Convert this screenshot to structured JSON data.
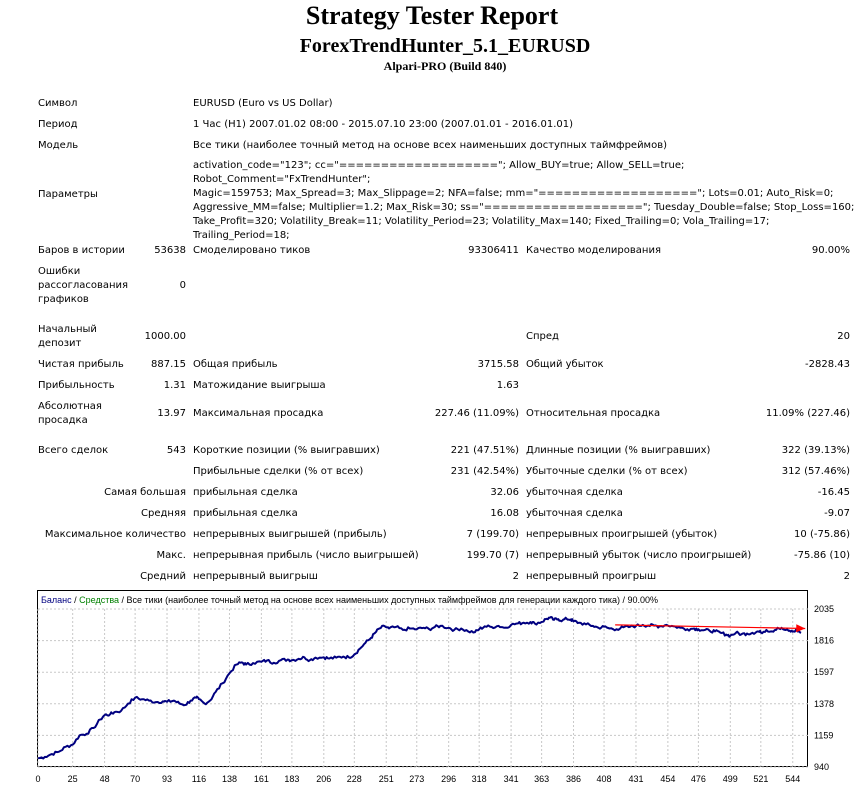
{
  "header": {
    "title": "Strategy Tester Report",
    "ea_name": "ForexTrendHunter_5.1_EURUSD",
    "broker": "Alpari-PRO (Build 840)"
  },
  "info": {
    "symbol_label": "Символ",
    "symbol_value": "EURUSD (Euro vs US Dollar)",
    "period_label": "Период",
    "period_value": "1 Час (H1) 2007.01.02 08:00 - 2015.07.10 23:00 (2007.01.01 - 2016.01.01)",
    "model_label": "Модель",
    "model_value": "Все тики (наиболее точный метод на основе всех наименьших доступных таймфреймов)",
    "params_label": "Параметры",
    "params_lines": [
      "activation_code=\"123\"; cc=\"===================\"; Allow_BUY=true; Allow_SELL=true; Robot_Comment=\"FxTrendHunter\";",
      "Magic=159753; Max_Spread=3; Max_Slippage=2; NFA=false; mm=\"===================\"; Lots=0.01; Auto_Risk=0;",
      "Aggressive_MM=false; Multiplier=1.2; Max_Risk=30; ss=\"===================\"; Tuesday_Double=false; Stop_Loss=160;",
      "Take_Profit=320; Volatility_Break=11; Volatility_Period=23; Volatility_Max=140; Fixed_Trailing=0; Vola_Trailing=17;",
      "Trailing_Period=18;"
    ]
  },
  "stats": {
    "bars_label": "Баров в истории",
    "bars_value": "53638",
    "ticks_label": "Смоделировано тиков",
    "ticks_value": "93306411",
    "quality_label": "Качество моделирования",
    "quality_value": "90.00%",
    "errors_label_1": "Ошибки",
    "errors_label_2": "рассогласования",
    "errors_label_3": "графиков",
    "errors_value": "0",
    "deposit_label_1": "Начальный",
    "deposit_label_2": "депозит",
    "deposit_value": "1000.00",
    "spread_label": "Спред",
    "spread_value": "20",
    "net_label": "Чистая прибыль",
    "net_value": "887.15",
    "gross_profit_label": "Общая прибыль",
    "gross_profit_value": "3715.58",
    "gross_loss_label": "Общий убыток",
    "gross_loss_value": "-2828.43",
    "pf_label": "Прибыльность",
    "pf_value": "1.31",
    "expected_label": "Матожидание выигрыша",
    "expected_value": "1.63",
    "abs_dd_label_1": "Абсолютная",
    "abs_dd_label_2": "просадка",
    "abs_dd_value": "13.97",
    "max_dd_label": "Максимальная просадка",
    "max_dd_value": "227.46 (11.09%)",
    "rel_dd_label": "Относительная просадка",
    "rel_dd_value": "11.09% (227.46)",
    "trades_label": "Всего сделок",
    "trades_value": "543",
    "short_label": "Короткие позиции (% выигравших)",
    "short_value": "221 (47.51%)",
    "long_label": "Длинные позиции (% выигравших)",
    "long_value": "322 (39.13%)",
    "profit_trades_label": "Прибыльные сделки (% от всех)",
    "profit_trades_value": "231 (42.54%)",
    "loss_trades_label": "Убыточные сделки (% от всех)",
    "loss_trades_value": "312 (57.46%)",
    "largest_label": "Самая большая",
    "largest_profit_label": "прибыльная сделка",
    "largest_profit_value": "32.06",
    "largest_loss_label": "убыточная сделка",
    "largest_loss_value": "-16.45",
    "average_label": "Средняя",
    "avg_profit_label": "прибыльная сделка",
    "avg_profit_value": "16.08",
    "avg_loss_label": "убыточная сделка",
    "avg_loss_value": "-9.07",
    "max_count_label": "Максимальное количество",
    "max_cons_wins_label": "непрерывных выигрышей (прибыль)",
    "max_cons_wins_value": "7 (199.70)",
    "max_cons_losses_label": "непрерывных проигрышей (убыток)",
    "max_cons_losses_value": "10 (-75.86)",
    "max_label": "Макс.",
    "max_cons_profit_label": "непрерывная прибыль (число выигрышей)",
    "max_cons_profit_value": "199.70 (7)",
    "max_cons_loss_label": "непрерывный убыток (число проигрышей)",
    "max_cons_loss_value": "-75.86 (10)",
    "avg_cons_label": "Средний",
    "avg_cons_wins_label": "непрерывный выигрыш",
    "avg_cons_wins_value": "2",
    "avg_cons_losses_label": "непрерывный проигрыш",
    "avg_cons_losses_value": "2"
  },
  "chart_data": {
    "type": "line",
    "legend_balance": "Баланс",
    "legend_sep": " / ",
    "legend_funds": "Средства",
    "legend_rest": " / Все тики (наиболее точный метод на основе всех наименьших доступных таймфреймов для генерации каждого тика) / 90.00%",
    "xlim": [
      0,
      555
    ],
    "ylim": [
      940,
      2035
    ],
    "x_ticks": [
      "0",
      "25",
      "48",
      "70",
      "93",
      "116",
      "138",
      "161",
      "183",
      "206",
      "228",
      "251",
      "273",
      "296",
      "318",
      "341",
      "363",
      "386",
      "408",
      "431",
      "454",
      "476",
      "499",
      "521",
      "544"
    ],
    "y_ticks": [
      "2035",
      "1816",
      "1597",
      "1378",
      "1159",
      "940"
    ],
    "colors": {
      "balance": "#000080",
      "funds": "#008000",
      "arrow": "#ff0000",
      "grid": "#c8c8c8"
    },
    "balance": [
      [
        0,
        1000
      ],
      [
        5,
        1010
      ],
      [
        10,
        1030
      ],
      [
        15,
        1045
      ],
      [
        20,
        1080
      ],
      [
        25,
        1095
      ],
      [
        30,
        1160
      ],
      [
        35,
        1170
      ],
      [
        40,
        1210
      ],
      [
        45,
        1270
      ],
      [
        48,
        1300
      ],
      [
        52,
        1305
      ],
      [
        55,
        1320
      ],
      [
        60,
        1330
      ],
      [
        65,
        1380
      ],
      [
        70,
        1420
      ],
      [
        75,
        1410
      ],
      [
        80,
        1400
      ],
      [
        85,
        1390
      ],
      [
        90,
        1395
      ],
      [
        93,
        1392
      ],
      [
        98,
        1400
      ],
      [
        102,
        1380
      ],
      [
        106,
        1370
      ],
      [
        110,
        1400
      ],
      [
        114,
        1420
      ],
      [
        116,
        1410
      ],
      [
        120,
        1380
      ],
      [
        124,
        1400
      ],
      [
        128,
        1460
      ],
      [
        133,
        1520
      ],
      [
        138,
        1590
      ],
      [
        143,
        1650
      ],
      [
        147,
        1665
      ],
      [
        150,
        1650
      ],
      [
        155,
        1660
      ],
      [
        161,
        1670
      ],
      [
        165,
        1678
      ],
      [
        170,
        1662
      ],
      [
        175,
        1680
      ],
      [
        180,
        1685
      ],
      [
        183,
        1680
      ],
      [
        188,
        1690
      ],
      [
        192,
        1700
      ],
      [
        196,
        1680
      ],
      [
        200,
        1698
      ],
      [
        206,
        1700
      ],
      [
        210,
        1692
      ],
      [
        215,
        1698
      ],
      [
        220,
        1705
      ],
      [
        224,
        1700
      ],
      [
        228,
        1720
      ],
      [
        232,
        1760
      ],
      [
        236,
        1800
      ],
      [
        240,
        1835
      ],
      [
        243,
        1870
      ],
      [
        246,
        1900
      ],
      [
        250,
        1915
      ],
      [
        253,
        1900
      ],
      [
        258,
        1910
      ],
      [
        263,
        1890
      ],
      [
        268,
        1900
      ],
      [
        273,
        1895
      ],
      [
        278,
        1905
      ],
      [
        282,
        1895
      ],
      [
        286,
        1910
      ],
      [
        290,
        1918
      ],
      [
        296,
        1905
      ],
      [
        300,
        1890
      ],
      [
        305,
        1900
      ],
      [
        310,
        1880
      ],
      [
        315,
        1875
      ],
      [
        318,
        1895
      ],
      [
        322,
        1915
      ],
      [
        327,
        1910
      ],
      [
        332,
        1918
      ],
      [
        336,
        1905
      ],
      [
        341,
        1925
      ],
      [
        346,
        1935
      ],
      [
        350,
        1940
      ],
      [
        355,
        1945
      ],
      [
        358,
        1935
      ],
      [
        363,
        1945
      ],
      [
        366,
        1965
      ],
      [
        369,
        1975
      ],
      [
        372,
        1960
      ],
      [
        375,
        1965
      ],
      [
        378,
        1955
      ],
      [
        381,
        1968
      ],
      [
        384,
        1962
      ],
      [
        386,
        1950
      ],
      [
        390,
        1940
      ],
      [
        395,
        1928
      ],
      [
        400,
        1918
      ],
      [
        404,
        1905
      ],
      [
        408,
        1912
      ],
      [
        412,
        1900
      ],
      [
        417,
        1895
      ],
      [
        422,
        1908
      ],
      [
        427,
        1912
      ],
      [
        431,
        1918
      ],
      [
        436,
        1925
      ],
      [
        440,
        1920
      ],
      [
        444,
        1920
      ],
      [
        448,
        1915
      ],
      [
        453,
        1925
      ],
      [
        458,
        1915
      ],
      [
        463,
        1905
      ],
      [
        468,
        1895
      ],
      [
        473,
        1900
      ],
      [
        476,
        1895
      ],
      [
        480,
        1888
      ],
      [
        484,
        1885
      ],
      [
        488,
        1880
      ],
      [
        492,
        1870
      ],
      [
        496,
        1858
      ],
      [
        499,
        1850
      ],
      [
        503,
        1870
      ],
      [
        507,
        1860
      ],
      [
        511,
        1865
      ],
      [
        515,
        1870
      ],
      [
        519,
        1880
      ],
      [
        521,
        1872
      ],
      [
        525,
        1890
      ],
      [
        529,
        1880
      ],
      [
        533,
        1905
      ],
      [
        537,
        1895
      ],
      [
        541,
        1883
      ],
      [
        544,
        1878
      ],
      [
        547,
        1888
      ],
      [
        550,
        1870
      ]
    ],
    "arrow": {
      "from": [
        416,
        1925
      ],
      "to": [
        553,
        1900
      ]
    }
  }
}
